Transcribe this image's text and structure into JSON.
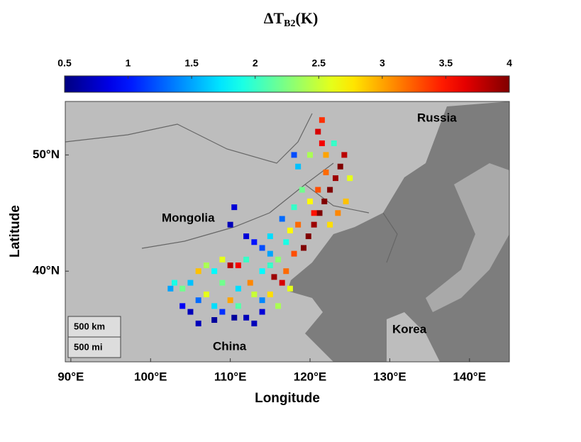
{
  "chart_data": {
    "type": "scatter",
    "title_parts": [
      "ΔT",
      "B2",
      "(K)"
    ],
    "x_label": "Longitude",
    "y_label": "Latitude",
    "annotations": [
      "Russia",
      "Mongolia",
      "China",
      "Korea"
    ],
    "scale_bar": [
      "500 km",
      "500 mi"
    ],
    "colormap": "jet",
    "clim": [
      0.5,
      4
    ],
    "cticks": [
      0.5,
      1,
      1.5,
      2,
      2.5,
      3,
      3.5,
      4
    ],
    "xlim": [
      89.3,
      145
    ],
    "ylim": [
      32.2,
      54.6
    ],
    "xticks": [
      {
        "value": 90,
        "label": "90°E"
      },
      {
        "value": 100,
        "label": "100°E"
      },
      {
        "value": 110,
        "label": "110°E"
      },
      {
        "value": 120,
        "label": "120°E"
      },
      {
        "value": 130,
        "label": "130°E"
      },
      {
        "value": 140,
        "label": "140°E"
      }
    ],
    "yticks": [
      {
        "value": 40,
        "label": "40°N"
      },
      {
        "value": 50,
        "label": "50°N"
      }
    ],
    "x": [
      119.2,
      119.8,
      120.5,
      121.2,
      121.8,
      122.5,
      123.2,
      123.8,
      124.3,
      121.5,
      121,
      121.5,
      120.5,
      121,
      122,
      120,
      119,
      118.5,
      118,
      120,
      122,
      123,
      125,
      124.5,
      123.5,
      122.5,
      118.5,
      117.5,
      117,
      118,
      116,
      115,
      114,
      113,
      112,
      110,
      110.5,
      112,
      111,
      110,
      109,
      108,
      107,
      106,
      105,
      104,
      103,
      104,
      105,
      106,
      107,
      108,
      109,
      110,
      110.5,
      111,
      112,
      113,
      112.5,
      114,
      115,
      115.5,
      116.5,
      117,
      116,
      114,
      113,
      108,
      109,
      111,
      115,
      117.5,
      102.5,
      106,
      114,
      118,
      116.5,
      115
    ],
    "y": [
      42,
      43,
      44,
      45,
      46,
      47,
      48,
      49,
      50,
      51,
      52,
      53,
      45,
      47,
      48.5,
      46,
      47,
      49,
      50,
      50,
      50,
      51,
      48,
      46,
      45,
      44,
      44,
      43.5,
      42.5,
      41.5,
      41,
      41.5,
      42,
      42.5,
      43,
      44,
      45.5,
      41,
      40.5,
      40.5,
      41,
      40,
      40.5,
      40,
      39,
      38.5,
      39,
      37,
      36.5,
      37.5,
      38,
      37,
      36.5,
      37.5,
      36,
      37,
      36,
      38,
      39,
      37.5,
      38,
      39.5,
      39,
      40,
      37,
      36.5,
      35.5,
      35.8,
      39,
      38.5,
      40.5,
      38.5,
      38.5,
      35.5,
      40,
      45.5,
      44.5,
      43
    ],
    "values": [
      4,
      4,
      3.9,
      4,
      4,
      4,
      3.9,
      4,
      3.8,
      3.6,
      3.7,
      3.4,
      3.5,
      3.3,
      3.2,
      2.7,
      2.2,
      1.6,
      1.2,
      2.4,
      3,
      2,
      2.6,
      2.9,
      3.1,
      2.8,
      3.2,
      2.7,
      1.9,
      3.3,
      2.3,
      1.5,
      1.2,
      1,
      0.8,
      0.7,
      0.8,
      2,
      3.6,
      3.8,
      2.6,
      1.8,
      2.4,
      2.9,
      1.6,
      2.2,
      1.9,
      0.9,
      0.7,
      1.3,
      2.6,
      1.7,
      1.1,
      3,
      0.6,
      2.1,
      0.7,
      2.5,
      3.1,
      1.4,
      2.8,
      3.9,
      3.7,
      3.2,
      2.4,
      0.8,
      0.7,
      0.6,
      2.2,
      1.7,
      2,
      2.6,
      1.5,
      0.7,
      1.8,
      2,
      1.3,
      1.7
    ]
  }
}
